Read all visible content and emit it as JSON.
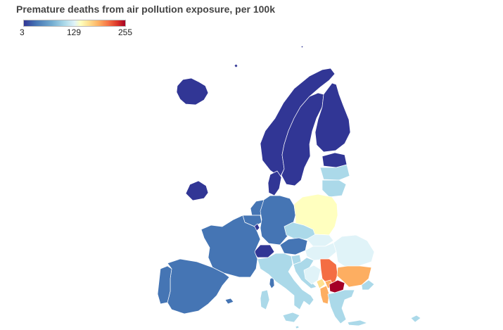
{
  "title": "Premature deaths from air pollution exposure, per 100k",
  "legend": {
    "min": "3",
    "mid": "129",
    "max": "255"
  },
  "palette": {
    "very_low": "#313695",
    "low": "#4575b4",
    "mid_low": "#74add1",
    "light": "#abd9e9",
    "very_light": "#e0f3f8",
    "neutral": "#ffffbf",
    "mid_high": "#fee090",
    "high": "#fdae61",
    "very_high": "#f46d43",
    "red": "#d73027",
    "max": "#a50026"
  }
}
